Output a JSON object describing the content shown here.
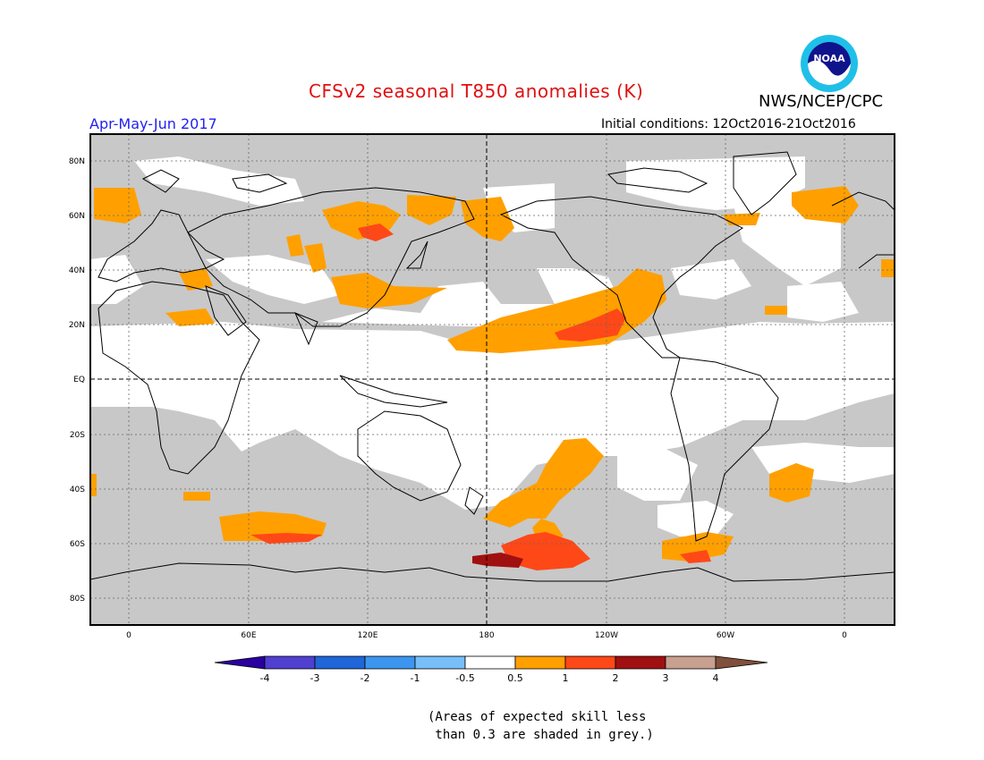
{
  "header": {
    "title": "CFSv2 seasonal T850 anomalies (K)",
    "period": "Apr-May-Jun 2017",
    "initial_conditions": "Initial conditions: 12Oct2016-21Oct2016",
    "agency": "NWS/NCEP/CPC",
    "logo_icon": "noaa-logo-icon"
  },
  "map": {
    "projection": "equirectangular",
    "lat_labels": [
      "80N",
      "60N",
      "40N",
      "20N",
      "EQ",
      "20S",
      "40S",
      "60S",
      "80S"
    ],
    "lon_labels": [
      "0",
      "60E",
      "120E",
      "180",
      "120W",
      "60W",
      "0"
    ],
    "colors": {
      "skill_grey": "#c8c8c8",
      "no_signal": "#ffffff",
      "anom_0_5_to_1": "#ffa000",
      "anom_1_to_2": "#ff4818",
      "anom_2_to_3": "#a01010",
      "coastline": "#000000"
    }
  },
  "colorbar": {
    "labels": [
      "-4",
      "-3",
      "-2",
      "-1",
      "-0.5",
      "0.5",
      "1",
      "2",
      "3",
      "4"
    ],
    "colors": [
      "#2a00a0",
      "#5040d0",
      "#1f66d8",
      "#3c96f0",
      "#78bef8",
      "#ffffff",
      "#ffa000",
      "#ff4818",
      "#a01010",
      "#c8a090",
      "#80503c"
    ]
  },
  "note": {
    "line1": "(Areas of expected skill less",
    "line2": " than 0.3 are shaded in grey.)"
  }
}
